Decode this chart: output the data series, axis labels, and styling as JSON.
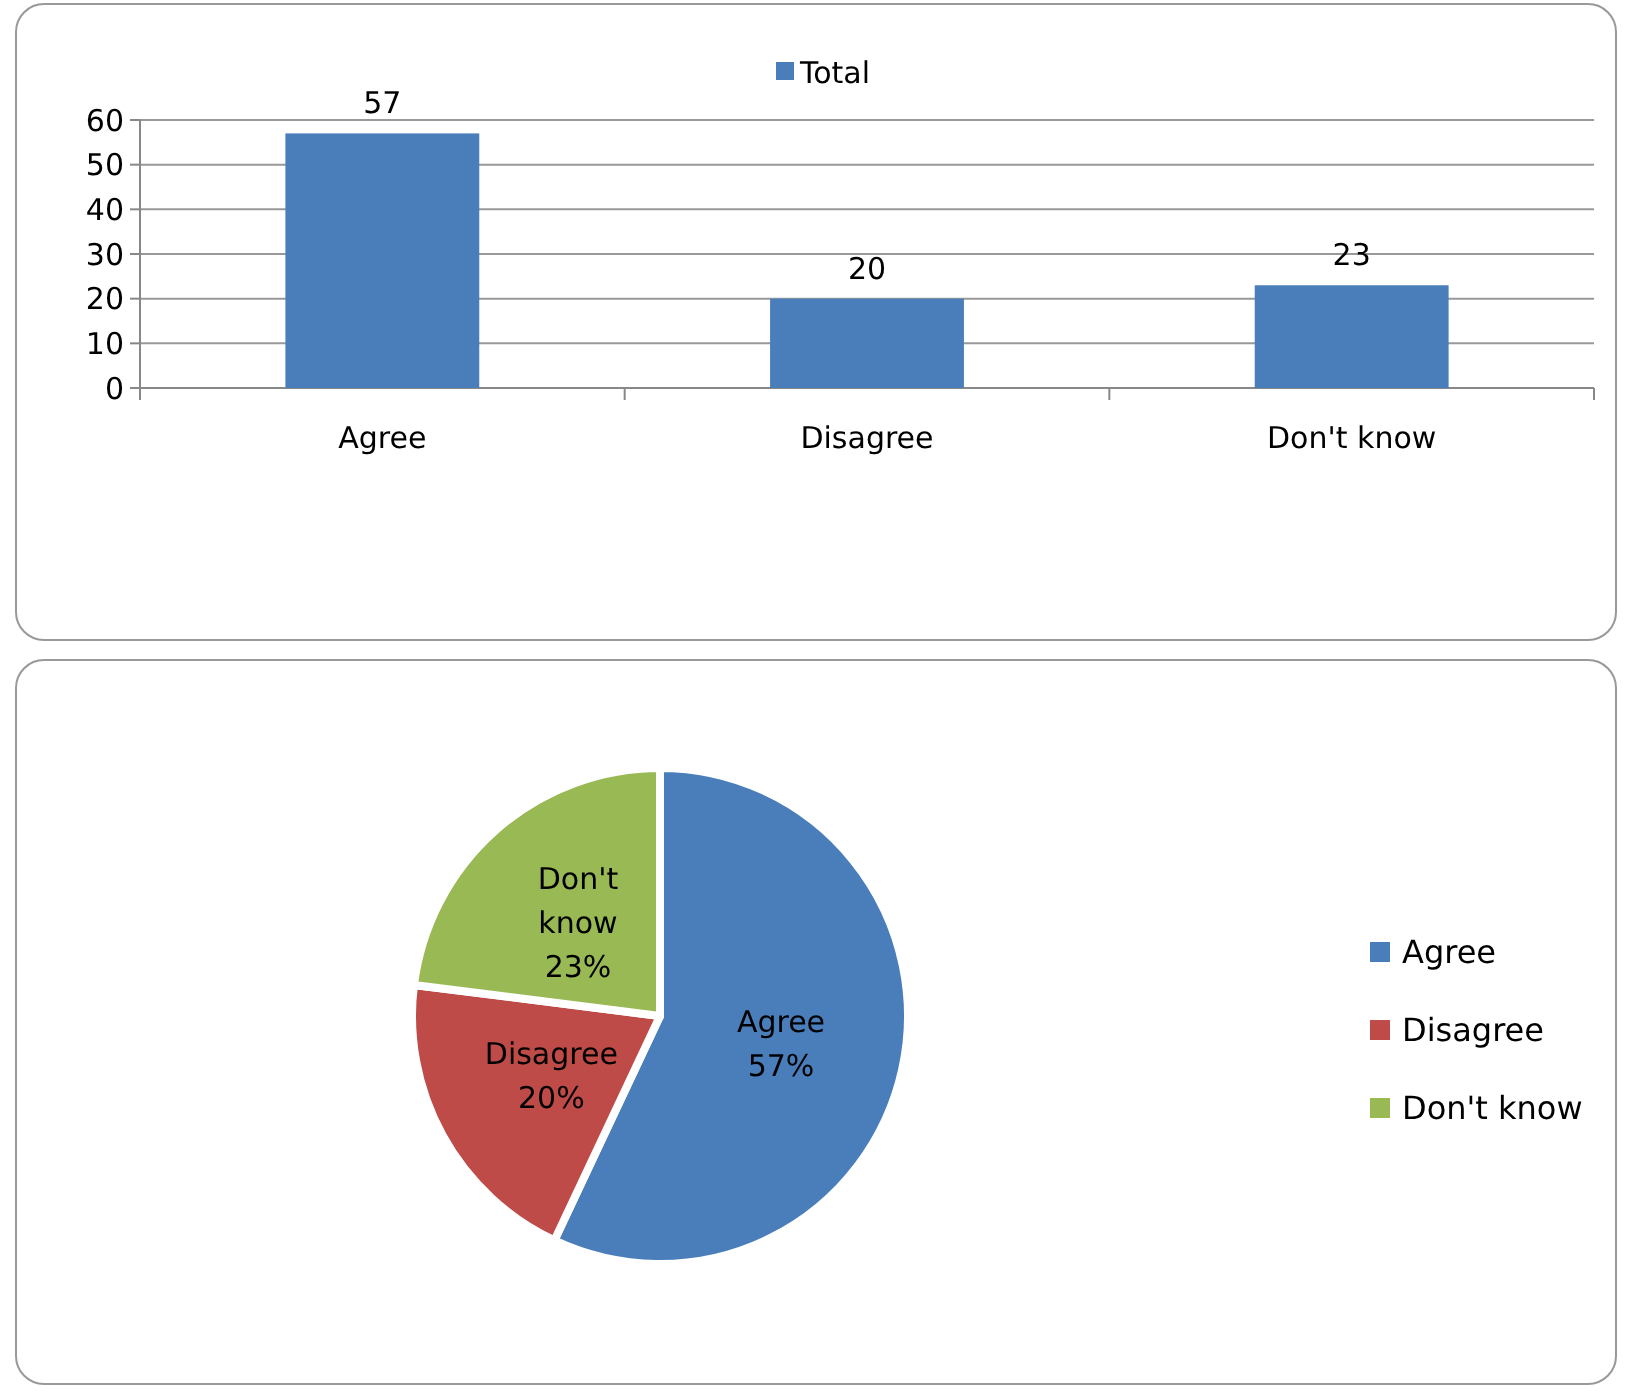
{
  "chart_data": [
    {
      "type": "bar",
      "categories": [
        "Agree",
        "Disagree",
        "Don't know"
      ],
      "series": [
        {
          "name": "Total",
          "color": "#4a7ebb",
          "values": [
            57,
            20,
            23
          ]
        }
      ],
      "ylim": [
        0,
        60
      ],
      "yticks": [
        0,
        10,
        20,
        30,
        40,
        50,
        60
      ],
      "grid": "y",
      "legend": "top",
      "data_labels": true
    },
    {
      "type": "pie",
      "categories": [
        "Agree",
        "Disagree",
        "Don't know"
      ],
      "values": [
        57,
        20,
        23
      ],
      "colors": [
        "#4a7ebb",
        "#be4b48",
        "#98b954"
      ],
      "value_labels": [
        "57%",
        "20%",
        "23%"
      ],
      "legend": "right"
    }
  ]
}
